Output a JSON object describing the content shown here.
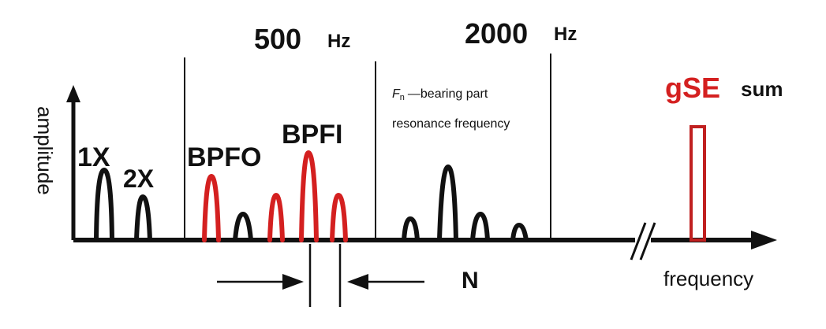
{
  "labels": {
    "freq_500": "500",
    "freq_500_unit": "Hz",
    "freq_2000": "2000",
    "freq_2000_unit": "Hz",
    "y_axis": "amplitude",
    "x_axis": "frequency",
    "peak_1x": "1X",
    "peak_2x": "2X",
    "peak_bpfo": "BPFO",
    "peak_bpfi": "BPFI",
    "fn_symbol": "F",
    "fn_subscript": "n",
    "fn_desc_line1": "—bearing part",
    "fn_desc_line2": "resonance frequency",
    "n_label": "N",
    "gse": "gSE",
    "gse_sum": "sum"
  },
  "colors": {
    "black": "#111111",
    "red": "#d42020"
  }
}
